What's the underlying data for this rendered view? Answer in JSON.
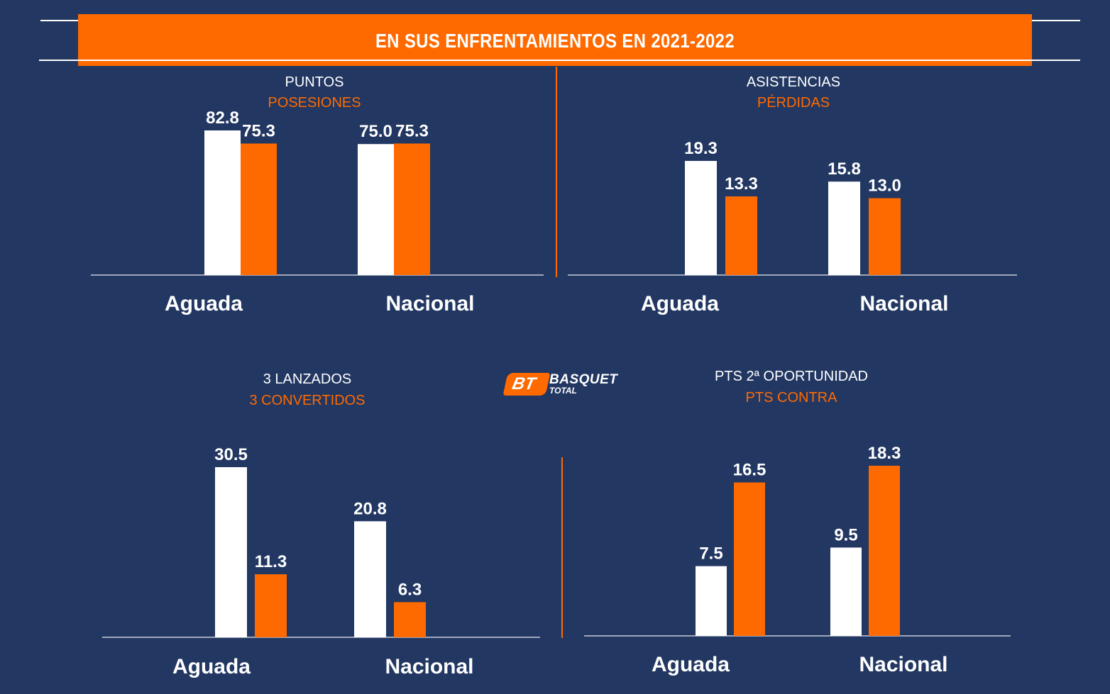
{
  "header": {
    "title": "EN SUS ENFRENTAMIENTOS EN 2021-2022"
  },
  "logo": {
    "line1": "BASQUET",
    "line2": "TOTAL",
    "badge": "BT"
  },
  "colors": {
    "background": "#223762",
    "accent": "#ff6a00",
    "primary_bar": "#ffffff"
  },
  "chart_data": [
    {
      "type": "bar",
      "title": "PUNTOS",
      "subtitle": "POSESIONES",
      "categories": [
        "Aguada",
        "Nacional"
      ],
      "series": [
        {
          "name": "PUNTOS",
          "color": "#ffffff",
          "values": [
            82.8,
            75.0
          ]
        },
        {
          "name": "POSESIONES",
          "color": "#ff6a00",
          "values": [
            75.3,
            75.3
          ]
        }
      ],
      "value_labels": [
        [
          "82.8",
          "75.0"
        ],
        [
          "75.3",
          "75.3"
        ]
      ],
      "ylim": [
        0,
        82.8
      ]
    },
    {
      "type": "bar",
      "title": "ASISTENCIAS",
      "subtitle": "PÉRDIDAS",
      "categories": [
        "Aguada",
        "Nacional"
      ],
      "series": [
        {
          "name": "ASISTENCIAS",
          "color": "#ffffff",
          "values": [
            19.3,
            15.8
          ]
        },
        {
          "name": "PÉRDIDAS",
          "color": "#ff6a00",
          "values": [
            13.3,
            13.0
          ]
        }
      ],
      "value_labels": [
        [
          "19.3",
          "15.8"
        ],
        [
          "13.3",
          "13.0"
        ]
      ],
      "ylim": [
        0,
        19.3
      ]
    },
    {
      "type": "bar",
      "title": "3 LANZADOS",
      "subtitle": "3 CONVERTIDOS",
      "categories": [
        "Aguada",
        "Nacional"
      ],
      "series": [
        {
          "name": "3 LANZADOS",
          "color": "#ffffff",
          "values": [
            30.5,
            20.8
          ]
        },
        {
          "name": "3 CONVERTIDOS",
          "color": "#ff6a00",
          "values": [
            11.3,
            6.3
          ]
        }
      ],
      "value_labels": [
        [
          "30.5",
          "20.8"
        ],
        [
          "11.3",
          "6.3"
        ]
      ],
      "ylim": [
        0,
        30.5
      ]
    },
    {
      "type": "bar",
      "title": "PTS 2ª OPORTUNIDAD",
      "subtitle": "PTS CONTRA",
      "categories": [
        "Aguada",
        "Nacional"
      ],
      "series": [
        {
          "name": "PTS 2ª OPORTUNIDAD",
          "color": "#ffffff",
          "values": [
            7.5,
            9.5
          ]
        },
        {
          "name": "PTS CONTRA",
          "color": "#ff6a00",
          "values": [
            16.5,
            18.3
          ]
        }
      ],
      "value_labels": [
        [
          "7.5",
          "9.5"
        ],
        [
          "16.5",
          "18.3"
        ]
      ],
      "ylim": [
        0,
        18.3
      ]
    }
  ]
}
